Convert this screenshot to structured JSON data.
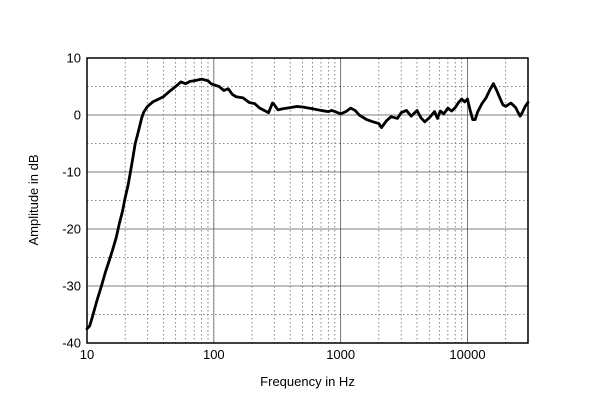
{
  "chart_data": {
    "type": "line",
    "title": "",
    "xlabel": "Frequency in Hz",
    "ylabel": "Amplitude in dB",
    "x_scale": "log",
    "xlim": [
      10,
      30000
    ],
    "ylim": [
      -40,
      10
    ],
    "grid": true,
    "x_ticks": [
      10,
      100,
      1000,
      10000
    ],
    "x_tick_labels": [
      "10",
      "100",
      "1000",
      "10000"
    ],
    "y_ticks": [
      10,
      0,
      -10,
      -20,
      -30,
      -40
    ],
    "y_tick_labels": [
      "10",
      "0",
      "-10",
      "-20",
      "-30",
      "-40"
    ],
    "series": [
      {
        "color": "#000000",
        "points": [
          [
            10,
            -37.5
          ],
          [
            10.5,
            -37
          ],
          [
            11,
            -35.5
          ],
          [
            12,
            -32.5
          ],
          [
            13,
            -30
          ],
          [
            14,
            -27.5
          ],
          [
            15,
            -25.5
          ],
          [
            16,
            -23.5
          ],
          [
            17,
            -21.5
          ],
          [
            18,
            -19
          ],
          [
            19,
            -17
          ],
          [
            20,
            -14.5
          ],
          [
            21,
            -12.5
          ],
          [
            22,
            -10
          ],
          [
            23,
            -7.5
          ],
          [
            24,
            -5
          ],
          [
            25,
            -3.5
          ],
          [
            26,
            -2
          ],
          [
            27,
            -0.5
          ],
          [
            28,
            0.5
          ],
          [
            30,
            1.5
          ],
          [
            33,
            2.3
          ],
          [
            36,
            2.7
          ],
          [
            40,
            3.2
          ],
          [
            45,
            4.2
          ],
          [
            50,
            5.0
          ],
          [
            55,
            5.8
          ],
          [
            60,
            5.5
          ],
          [
            65,
            5.9
          ],
          [
            70,
            6.0
          ],
          [
            80,
            6.3
          ],
          [
            90,
            6.0
          ],
          [
            95,
            5.5
          ],
          [
            100,
            5.3
          ],
          [
            110,
            5.0
          ],
          [
            120,
            4.3
          ],
          [
            130,
            4.6
          ],
          [
            140,
            3.6
          ],
          [
            150,
            3.2
          ],
          [
            170,
            3.0
          ],
          [
            190,
            2.2
          ],
          [
            210,
            2.0
          ],
          [
            230,
            1.2
          ],
          [
            250,
            0.8
          ],
          [
            270,
            0.4
          ],
          [
            290,
            2.1
          ],
          [
            300,
            1.8
          ],
          [
            320,
            0.9
          ],
          [
            350,
            1.1
          ],
          [
            400,
            1.3
          ],
          [
            450,
            1.5
          ],
          [
            500,
            1.4
          ],
          [
            600,
            1.1
          ],
          [
            700,
            0.8
          ],
          [
            800,
            0.6
          ],
          [
            850,
            0.8
          ],
          [
            900,
            0.6
          ],
          [
            1000,
            0.2
          ],
          [
            1100,
            0.6
          ],
          [
            1200,
            1.2
          ],
          [
            1300,
            0.8
          ],
          [
            1400,
            0.0
          ],
          [
            1600,
            -0.8
          ],
          [
            1800,
            -1.2
          ],
          [
            2000,
            -1.5
          ],
          [
            2100,
            -2.2
          ],
          [
            2300,
            -1.0
          ],
          [
            2500,
            -0.3
          ],
          [
            2800,
            -0.6
          ],
          [
            3000,
            0.4
          ],
          [
            3300,
            0.8
          ],
          [
            3600,
            -0.2
          ],
          [
            4000,
            0.8
          ],
          [
            4300,
            -0.5
          ],
          [
            4600,
            -1.2
          ],
          [
            5000,
            -0.5
          ],
          [
            5500,
            0.6
          ],
          [
            5800,
            -0.6
          ],
          [
            6100,
            0.7
          ],
          [
            6500,
            0.2
          ],
          [
            7000,
            1.2
          ],
          [
            7500,
            0.7
          ],
          [
            8000,
            1.3
          ],
          [
            8500,
            2.2
          ],
          [
            9000,
            2.8
          ],
          [
            9500,
            2.3
          ],
          [
            10000,
            2.8
          ],
          [
            10500,
            0.8
          ],
          [
            11000,
            -0.8
          ],
          [
            11500,
            -0.8
          ],
          [
            12000,
            0.5
          ],
          [
            13000,
            2.0
          ],
          [
            14000,
            3.0
          ],
          [
            15000,
            4.4
          ],
          [
            16000,
            5.5
          ],
          [
            17000,
            4.3
          ],
          [
            18000,
            3.0
          ],
          [
            19000,
            1.8
          ],
          [
            20000,
            1.5
          ],
          [
            21000,
            1.8
          ],
          [
            22000,
            2.1
          ],
          [
            23000,
            1.7
          ],
          [
            24000,
            1.3
          ],
          [
            25000,
            0.5
          ],
          [
            26000,
            -0.2
          ],
          [
            27000,
            0.4
          ],
          [
            28500,
            1.5
          ],
          [
            30000,
            2.2
          ]
        ]
      }
    ]
  }
}
